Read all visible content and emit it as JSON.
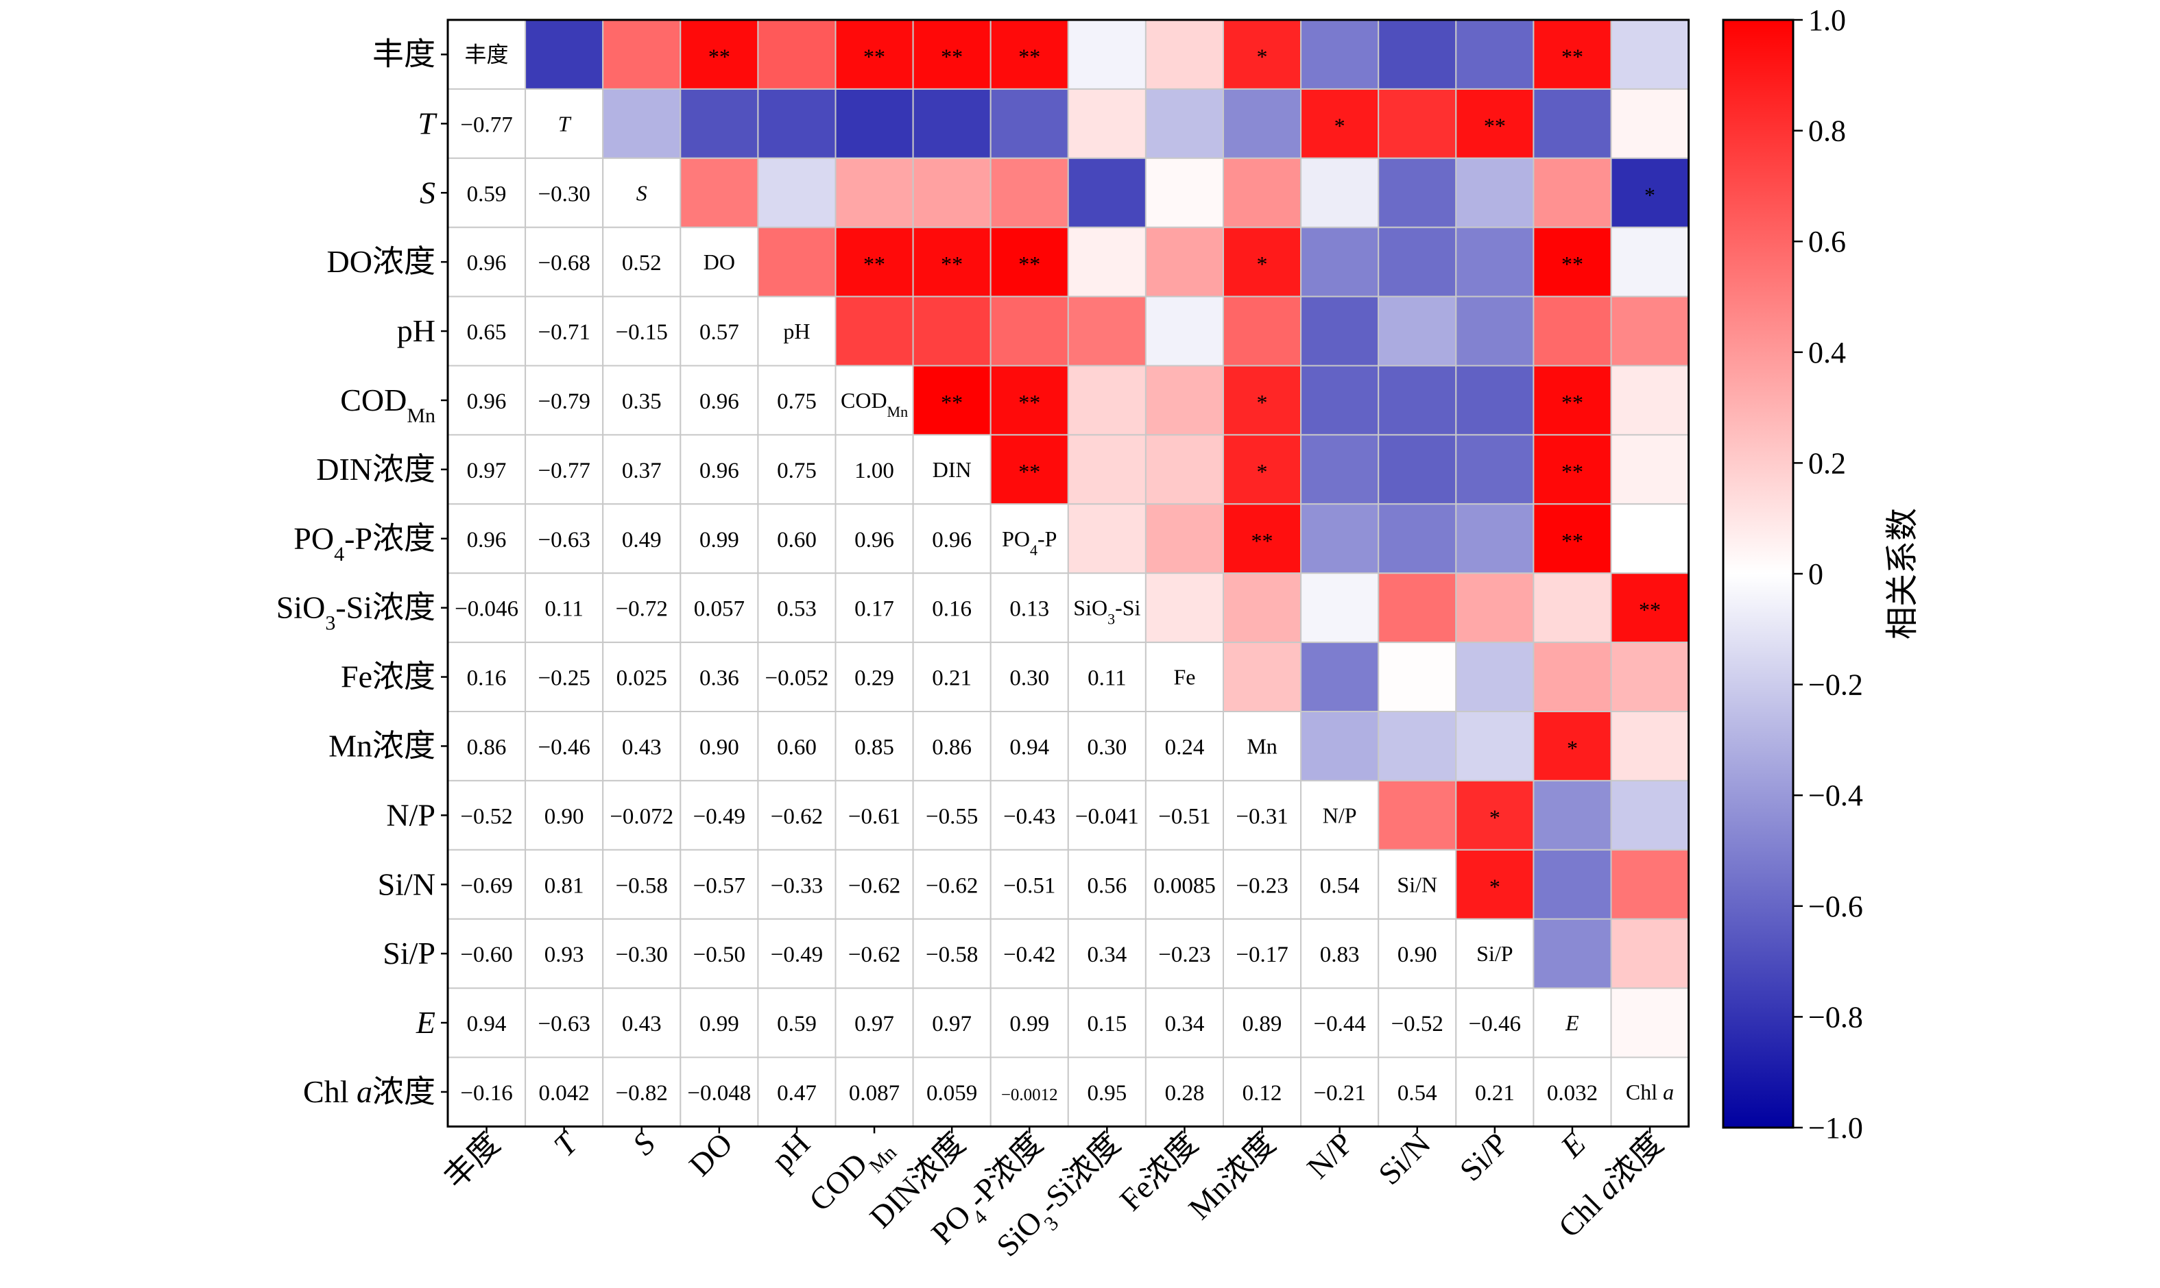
{
  "chart_data": {
    "type": "heatmap",
    "variables": [
      {
        "row_label": "丰度",
        "col_label": "丰度",
        "diag_label": "丰度",
        "italic": false
      },
      {
        "row_label": "T",
        "col_label": "T",
        "diag_label": "T",
        "italic": true
      },
      {
        "row_label": "S",
        "col_label": "S",
        "diag_label": "S",
        "italic": true
      },
      {
        "row_label": "DO浓度",
        "col_label": "DO",
        "diag_label": "DO",
        "italic": false
      },
      {
        "row_label": "pH",
        "col_label": "pH",
        "diag_label": "pH",
        "italic": false
      },
      {
        "row_label": "COD|Mn",
        "col_label": "COD|Mn",
        "diag_label": "COD|Mn",
        "italic": false
      },
      {
        "row_label": "DIN浓度",
        "col_label": "DIN浓度",
        "diag_label": "DIN",
        "italic": false
      },
      {
        "row_label": "PO|4|-P浓度",
        "col_label": "PO|4|-P浓度",
        "diag_label": "PO|4|-P",
        "italic": false
      },
      {
        "row_label": "SiO|3|-Si浓度",
        "col_label": "SiO|3|-Si浓度",
        "diag_label": "SiO|3|-Si",
        "italic": false
      },
      {
        "row_label": "Fe浓度",
        "col_label": "Fe浓度",
        "diag_label": "Fe",
        "italic": false
      },
      {
        "row_label": "Mn浓度",
        "col_label": "Mn浓度",
        "diag_label": "Mn",
        "italic": false
      },
      {
        "row_label": "N/P",
        "col_label": "N/P",
        "diag_label": "N/P",
        "italic": false
      },
      {
        "row_label": "Si/N",
        "col_label": "Si/N",
        "diag_label": "Si/N",
        "italic": false
      },
      {
        "row_label": "Si/P",
        "col_label": "Si/P",
        "diag_label": "Si/P",
        "italic": false
      },
      {
        "row_label": "E",
        "col_label": "E",
        "diag_label": "E",
        "italic": true
      },
      {
        "row_label": "Chl a浓度",
        "col_label": "Chl a浓度",
        "diag_label": "Chl a",
        "italic": false,
        "italic_part": "a"
      }
    ],
    "lower_values": [
      [],
      [
        "−0.77"
      ],
      [
        "0.59",
        "−0.30"
      ],
      [
        "0.96",
        "−0.68",
        "0.52"
      ],
      [
        "0.65",
        "−0.71",
        "−0.15",
        "0.57"
      ],
      [
        "0.96",
        "−0.79",
        "0.35",
        "0.96",
        "0.75"
      ],
      [
        "0.97",
        "−0.77",
        "0.37",
        "0.96",
        "0.75",
        "1.00"
      ],
      [
        "0.96",
        "−0.63",
        "0.49",
        "0.99",
        "0.60",
        "0.96",
        "0.96"
      ],
      [
        "−0.046",
        "0.11",
        "−0.72",
        "0.057",
        "0.53",
        "0.17",
        "0.16",
        "0.13"
      ],
      [
        "0.16",
        "−0.25",
        "0.025",
        "0.36",
        "−0.052",
        "0.29",
        "0.21",
        "0.30",
        "0.11"
      ],
      [
        "0.86",
        "−0.46",
        "0.43",
        "0.90",
        "0.60",
        "0.85",
        "0.86",
        "0.94",
        "0.30",
        "0.24"
      ],
      [
        "−0.52",
        "0.90",
        "−0.072",
        "−0.49",
        "−0.62",
        "−0.61",
        "−0.55",
        "−0.43",
        "−0.041",
        "−0.51",
        "−0.31"
      ],
      [
        "−0.69",
        "0.81",
        "−0.58",
        "−0.57",
        "−0.33",
        "−0.62",
        "−0.62",
        "−0.51",
        "0.56",
        "0.0085",
        "−0.23",
        "0.54"
      ],
      [
        "−0.60",
        "0.93",
        "−0.30",
        "−0.50",
        "−0.49",
        "−0.62",
        "−0.58",
        "−0.42",
        "0.34",
        "−0.23",
        "−0.17",
        "0.83",
        "0.90"
      ],
      [
        "0.94",
        "−0.63",
        "0.43",
        "0.99",
        "0.59",
        "0.97",
        "0.97",
        "0.99",
        "0.15",
        "0.34",
        "0.89",
        "−0.44",
        "−0.52",
        "−0.46"
      ],
      [
        "−0.16",
        "0.042",
        "−0.82",
        "−0.048",
        "0.47",
        "0.087",
        "0.059",
        "−0.0012",
        "0.95",
        "0.28",
        "0.12",
        "−0.21",
        "0.54",
        "0.21",
        "0.032"
      ]
    ],
    "significance": [
      {
        "row": 0,
        "col": 3,
        "mark": "**"
      },
      {
        "row": 0,
        "col": 5,
        "mark": "**"
      },
      {
        "row": 0,
        "col": 6,
        "mark": "**"
      },
      {
        "row": 0,
        "col": 7,
        "mark": "**"
      },
      {
        "row": 0,
        "col": 10,
        "mark": "*"
      },
      {
        "row": 0,
        "col": 14,
        "mark": "**"
      },
      {
        "row": 1,
        "col": 11,
        "mark": "*"
      },
      {
        "row": 1,
        "col": 13,
        "mark": "**"
      },
      {
        "row": 2,
        "col": 15,
        "mark": "*"
      },
      {
        "row": 3,
        "col": 5,
        "mark": "**"
      },
      {
        "row": 3,
        "col": 6,
        "mark": "**"
      },
      {
        "row": 3,
        "col": 7,
        "mark": "**"
      },
      {
        "row": 3,
        "col": 10,
        "mark": "*"
      },
      {
        "row": 3,
        "col": 14,
        "mark": "**"
      },
      {
        "row": 5,
        "col": 6,
        "mark": "**"
      },
      {
        "row": 5,
        "col": 7,
        "mark": "**"
      },
      {
        "row": 5,
        "col": 10,
        "mark": "*"
      },
      {
        "row": 5,
        "col": 14,
        "mark": "**"
      },
      {
        "row": 6,
        "col": 7,
        "mark": "**"
      },
      {
        "row": 6,
        "col": 10,
        "mark": "*"
      },
      {
        "row": 6,
        "col": 14,
        "mark": "**"
      },
      {
        "row": 7,
        "col": 10,
        "mark": "**"
      },
      {
        "row": 7,
        "col": 14,
        "mark": "**"
      },
      {
        "row": 8,
        "col": 15,
        "mark": "**"
      },
      {
        "row": 10,
        "col": 14,
        "mark": "*"
      },
      {
        "row": 11,
        "col": 13,
        "mark": "*"
      },
      {
        "row": 12,
        "col": 13,
        "mark": "*"
      }
    ],
    "colorbar": {
      "label": "相关系数",
      "range": [
        -1.0,
        1.0
      ],
      "ticks": [
        "1.0",
        "0.8",
        "0.6",
        "0.4",
        "0.2",
        "0",
        "−0.2",
        "−0.4",
        "−0.6",
        "−0.8",
        "−1.0"
      ],
      "colors": {
        "negative": "#0000a0",
        "neutral": "#ffffff",
        "positive": "#ff0000"
      }
    },
    "grid": true
  }
}
